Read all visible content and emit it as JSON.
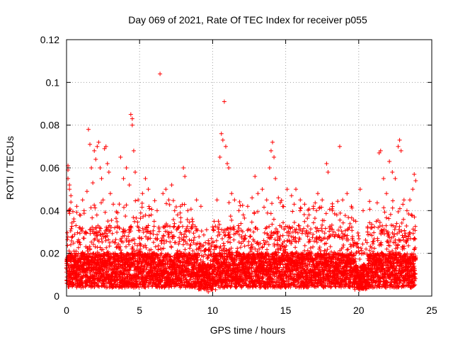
{
  "chart_data": {
    "type": "scatter",
    "title": "Day 069 of 2021, Rate Of TEC Index for receiver p055",
    "xlabel": "GPS time / hours",
    "ylabel": "ROTI / TECUs",
    "xlim": [
      0,
      25
    ],
    "ylim": [
      0,
      0.12
    ],
    "grid": true,
    "marker": "+",
    "color": "#ff0000",
    "x_ticks": [
      {
        "value": 0,
        "label": "0"
      },
      {
        "value": 5,
        "label": "5"
      },
      {
        "value": 10,
        "label": "10"
      },
      {
        "value": 15,
        "label": "15"
      },
      {
        "value": 20,
        "label": "20"
      },
      {
        "value": 25,
        "label": "25"
      }
    ],
    "y_ticks": [
      {
        "value": 0,
        "label": "0"
      },
      {
        "value": 0.02,
        "label": "0.02"
      },
      {
        "value": 0.04,
        "label": "0.04"
      },
      {
        "value": 0.06,
        "label": "0.06"
      },
      {
        "value": 0.08,
        "label": "0.08"
      },
      {
        "value": 0.1,
        "label": "0.1"
      },
      {
        "value": 0.12,
        "label": "0.12"
      }
    ],
    "data_extent": {
      "x_start": 0,
      "x_end": 23.9,
      "typical_min": 0.003,
      "typical_max": 0.04
    },
    "series": [
      {
        "name": "ROTI",
        "points": [
          [
            0.0,
            0.013
          ],
          [
            0.1,
            0.061
          ],
          [
            0.1,
            0.059
          ],
          [
            0.1,
            0.055
          ],
          [
            0.2,
            0.052
          ],
          [
            0.2,
            0.05
          ],
          [
            0.3,
            0.047
          ],
          [
            0.3,
            0.044
          ],
          [
            0.5,
            0.035
          ],
          [
            0.7,
            0.042
          ],
          [
            0.9,
            0.038
          ],
          [
            1.1,
            0.045
          ],
          [
            1.2,
            0.04
          ],
          [
            1.4,
            0.049
          ],
          [
            1.5,
            0.078
          ],
          [
            1.6,
            0.071
          ],
          [
            1.7,
            0.06
          ],
          [
            1.8,
            0.053
          ],
          [
            1.9,
            0.068
          ],
          [
            2.0,
            0.064
          ],
          [
            2.1,
            0.07
          ],
          [
            2.2,
            0.072
          ],
          [
            2.3,
            0.06
          ],
          [
            2.4,
            0.055
          ],
          [
            2.5,
            0.045
          ],
          [
            2.6,
            0.069
          ],
          [
            2.7,
            0.07
          ],
          [
            2.8,
            0.062
          ],
          [
            2.9,
            0.058
          ],
          [
            3.0,
            0.048
          ],
          [
            3.2,
            0.043
          ],
          [
            3.5,
            0.039
          ],
          [
            3.7,
            0.065
          ],
          [
            3.9,
            0.055
          ],
          [
            4.1,
            0.06
          ],
          [
            4.3,
            0.052
          ],
          [
            4.4,
            0.085
          ],
          [
            4.5,
            0.083
          ],
          [
            4.5,
            0.08
          ],
          [
            4.6,
            0.068
          ],
          [
            4.7,
            0.058
          ],
          [
            4.9,
            0.045
          ],
          [
            5.2,
            0.048
          ],
          [
            5.4,
            0.055
          ],
          [
            5.6,
            0.05
          ],
          [
            5.8,
            0.038
          ],
          [
            6.0,
            0.035
          ],
          [
            6.2,
            0.04
          ],
          [
            6.4,
            0.104
          ],
          [
            6.6,
            0.048
          ],
          [
            6.8,
            0.05
          ],
          [
            7.0,
            0.045
          ],
          [
            7.2,
            0.052
          ],
          [
            7.4,
            0.04
          ],
          [
            7.6,
            0.038
          ],
          [
            7.8,
            0.042
          ],
          [
            8.0,
            0.06
          ],
          [
            8.1,
            0.056
          ],
          [
            8.3,
            0.04
          ],
          [
            8.6,
            0.036
          ],
          [
            8.9,
            0.045
          ],
          [
            9.2,
            0.042
          ],
          [
            9.5,
            0.025
          ],
          [
            9.8,
            0.022
          ],
          [
            10.1,
            0.035
          ],
          [
            10.3,
            0.045
          ],
          [
            10.5,
            0.065
          ],
          [
            10.6,
            0.076
          ],
          [
            10.7,
            0.073
          ],
          [
            10.8,
            0.091
          ],
          [
            10.9,
            0.07
          ],
          [
            11.0,
            0.062
          ],
          [
            11.1,
            0.06
          ],
          [
            11.3,
            0.048
          ],
          [
            11.5,
            0.045
          ],
          [
            11.8,
            0.04
          ],
          [
            12.1,
            0.038
          ],
          [
            12.4,
            0.042
          ],
          [
            12.7,
            0.046
          ],
          [
            12.9,
            0.056
          ],
          [
            13.1,
            0.048
          ],
          [
            13.4,
            0.05
          ],
          [
            13.7,
            0.045
          ],
          [
            13.9,
            0.06
          ],
          [
            14.0,
            0.068
          ],
          [
            14.1,
            0.072
          ],
          [
            14.2,
            0.065
          ],
          [
            14.3,
            0.055
          ],
          [
            14.5,
            0.046
          ],
          [
            14.8,
            0.042
          ],
          [
            15.1,
            0.05
          ],
          [
            15.4,
            0.047
          ],
          [
            15.7,
            0.05
          ],
          [
            16.0,
            0.045
          ],
          [
            16.3,
            0.043
          ],
          [
            16.6,
            0.038
          ],
          [
            16.9,
            0.042
          ],
          [
            17.2,
            0.048
          ],
          [
            17.5,
            0.045
          ],
          [
            17.8,
            0.062
          ],
          [
            17.9,
            0.058
          ],
          [
            18.2,
            0.04
          ],
          [
            18.5,
            0.038
          ],
          [
            18.7,
            0.07
          ],
          [
            18.9,
            0.045
          ],
          [
            19.2,
            0.048
          ],
          [
            19.5,
            0.042
          ],
          [
            19.8,
            0.035
          ],
          [
            20.1,
            0.05
          ],
          [
            20.3,
            0.04
          ],
          [
            20.6,
            0.03
          ],
          [
            20.9,
            0.032
          ],
          [
            21.2,
            0.035
          ],
          [
            21.4,
            0.067
          ],
          [
            21.5,
            0.068
          ],
          [
            21.7,
            0.055
          ],
          [
            21.9,
            0.048
          ],
          [
            22.1,
            0.063
          ],
          [
            22.3,
            0.058
          ],
          [
            22.5,
            0.055
          ],
          [
            22.7,
            0.07
          ],
          [
            22.8,
            0.073
          ],
          [
            22.9,
            0.068
          ],
          [
            23.1,
            0.045
          ],
          [
            23.3,
            0.04
          ],
          [
            23.5,
            0.045
          ],
          [
            23.7,
            0.05
          ],
          [
            23.8,
            0.057
          ],
          [
            23.9,
            0.054
          ],
          [
            0.4,
            0.028
          ],
          [
            0.9,
            0.025
          ],
          [
            1.3,
            0.03
          ],
          [
            2.0,
            0.032
          ],
          [
            2.7,
            0.028
          ],
          [
            3.3,
            0.025
          ],
          [
            4.0,
            0.03
          ],
          [
            5.0,
            0.027
          ],
          [
            5.5,
            0.03
          ],
          [
            6.5,
            0.026
          ],
          [
            7.3,
            0.028
          ],
          [
            8.5,
            0.024
          ],
          [
            9.0,
            0.02
          ],
          [
            10.4,
            0.03
          ],
          [
            11.2,
            0.032
          ],
          [
            12.0,
            0.028
          ],
          [
            12.8,
            0.03
          ],
          [
            13.5,
            0.026
          ],
          [
            14.6,
            0.033
          ],
          [
            15.5,
            0.03
          ],
          [
            16.5,
            0.028
          ],
          [
            17.4,
            0.026
          ],
          [
            18.3,
            0.03
          ],
          [
            19.0,
            0.028
          ],
          [
            19.7,
            0.025
          ],
          [
            20.5,
            0.022
          ],
          [
            21.0,
            0.02
          ],
          [
            22.0,
            0.03
          ],
          [
            22.6,
            0.034
          ],
          [
            23.4,
            0.028
          ],
          [
            23.9,
            0.018
          ],
          [
            0.3,
            0.005
          ],
          [
            1.0,
            0.004
          ],
          [
            2.5,
            0.005
          ],
          [
            3.8,
            0.004
          ],
          [
            5.3,
            0.005
          ],
          [
            6.7,
            0.004
          ],
          [
            8.8,
            0.004
          ],
          [
            9.7,
            0.002
          ],
          [
            10.2,
            0.003
          ],
          [
            11.6,
            0.004
          ],
          [
            13.2,
            0.005
          ],
          [
            15.0,
            0.004
          ],
          [
            16.2,
            0.005
          ],
          [
            17.6,
            0.004
          ],
          [
            18.8,
            0.005
          ],
          [
            20.7,
            0.004
          ],
          [
            22.2,
            0.005
          ],
          [
            23.6,
            0.004
          ]
        ]
      }
    ]
  }
}
